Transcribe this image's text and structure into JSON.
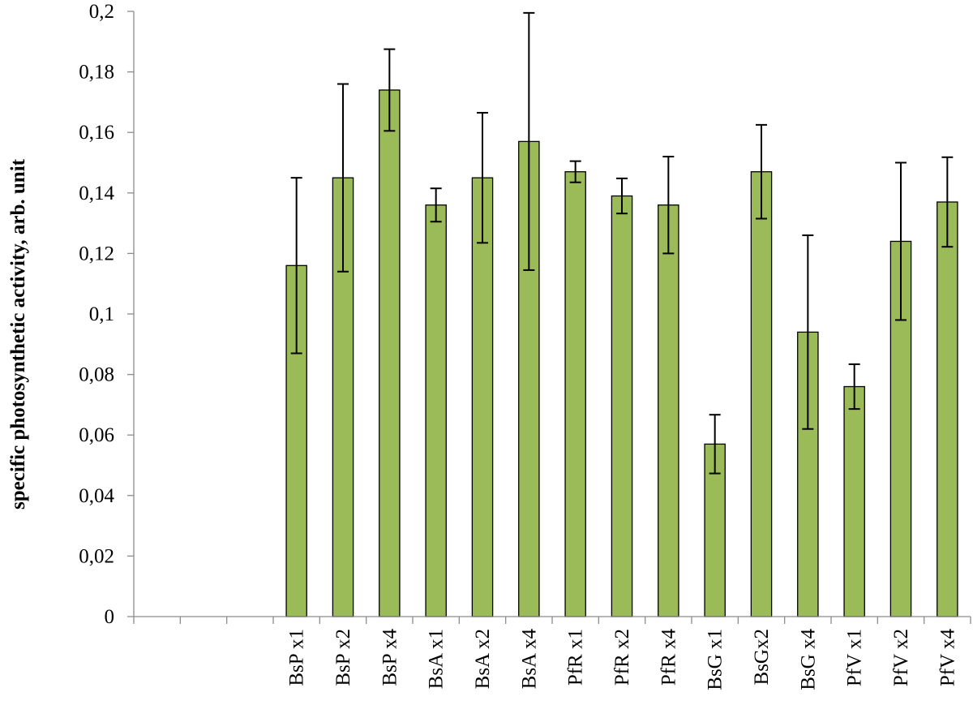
{
  "chart_data": {
    "type": "bar",
    "title": "",
    "xlabel": "",
    "ylabel": "specific photosynthetic activity, arb. unit",
    "ylim": [
      0,
      0.2
    ],
    "yticks": [
      "0",
      "0,02",
      "0,04",
      "0,06",
      "0,08",
      "0,1",
      "0,12",
      "0,14",
      "0,16",
      "0,18",
      "0,2"
    ],
    "grid": false,
    "legend": "none",
    "bar_color": "#9BBB59",
    "bar_edge_color": "#000000",
    "groups": [
      {
        "categories": [
          "",
          "",
          ""
        ],
        "values": [
          null,
          null,
          null
        ],
        "errors": [
          null,
          null,
          null
        ]
      },
      {
        "categories": [
          "BsP x1",
          "BsP x2",
          "BsP x4"
        ],
        "values": [
          0.116,
          0.145,
          0.174
        ],
        "errors": [
          0.029,
          0.031,
          0.0135
        ]
      },
      {
        "categories": [
          "BsA x1",
          "BsA x2",
          "BsA x4"
        ],
        "values": [
          0.136,
          0.145,
          0.157
        ],
        "errors": [
          0.0055,
          0.0215,
          0.0425
        ]
      },
      {
        "categories": [
          "PfR x1",
          "PfR x2",
          "PfR x4"
        ],
        "values": [
          0.147,
          0.139,
          0.136
        ],
        "errors": [
          0.0035,
          0.0058,
          0.016
        ]
      },
      {
        "categories": [
          "BsG x1",
          "BsGx2",
          "BsG x4"
        ],
        "values": [
          0.057,
          0.147,
          0.094
        ],
        "errors": [
          0.0097,
          0.0155,
          0.032
        ]
      },
      {
        "categories": [
          "PfV x1",
          "PfV x2",
          "PfV x4"
        ],
        "values": [
          0.076,
          0.124,
          0.137
        ],
        "errors": [
          0.0074,
          0.026,
          0.0148
        ]
      }
    ]
  }
}
